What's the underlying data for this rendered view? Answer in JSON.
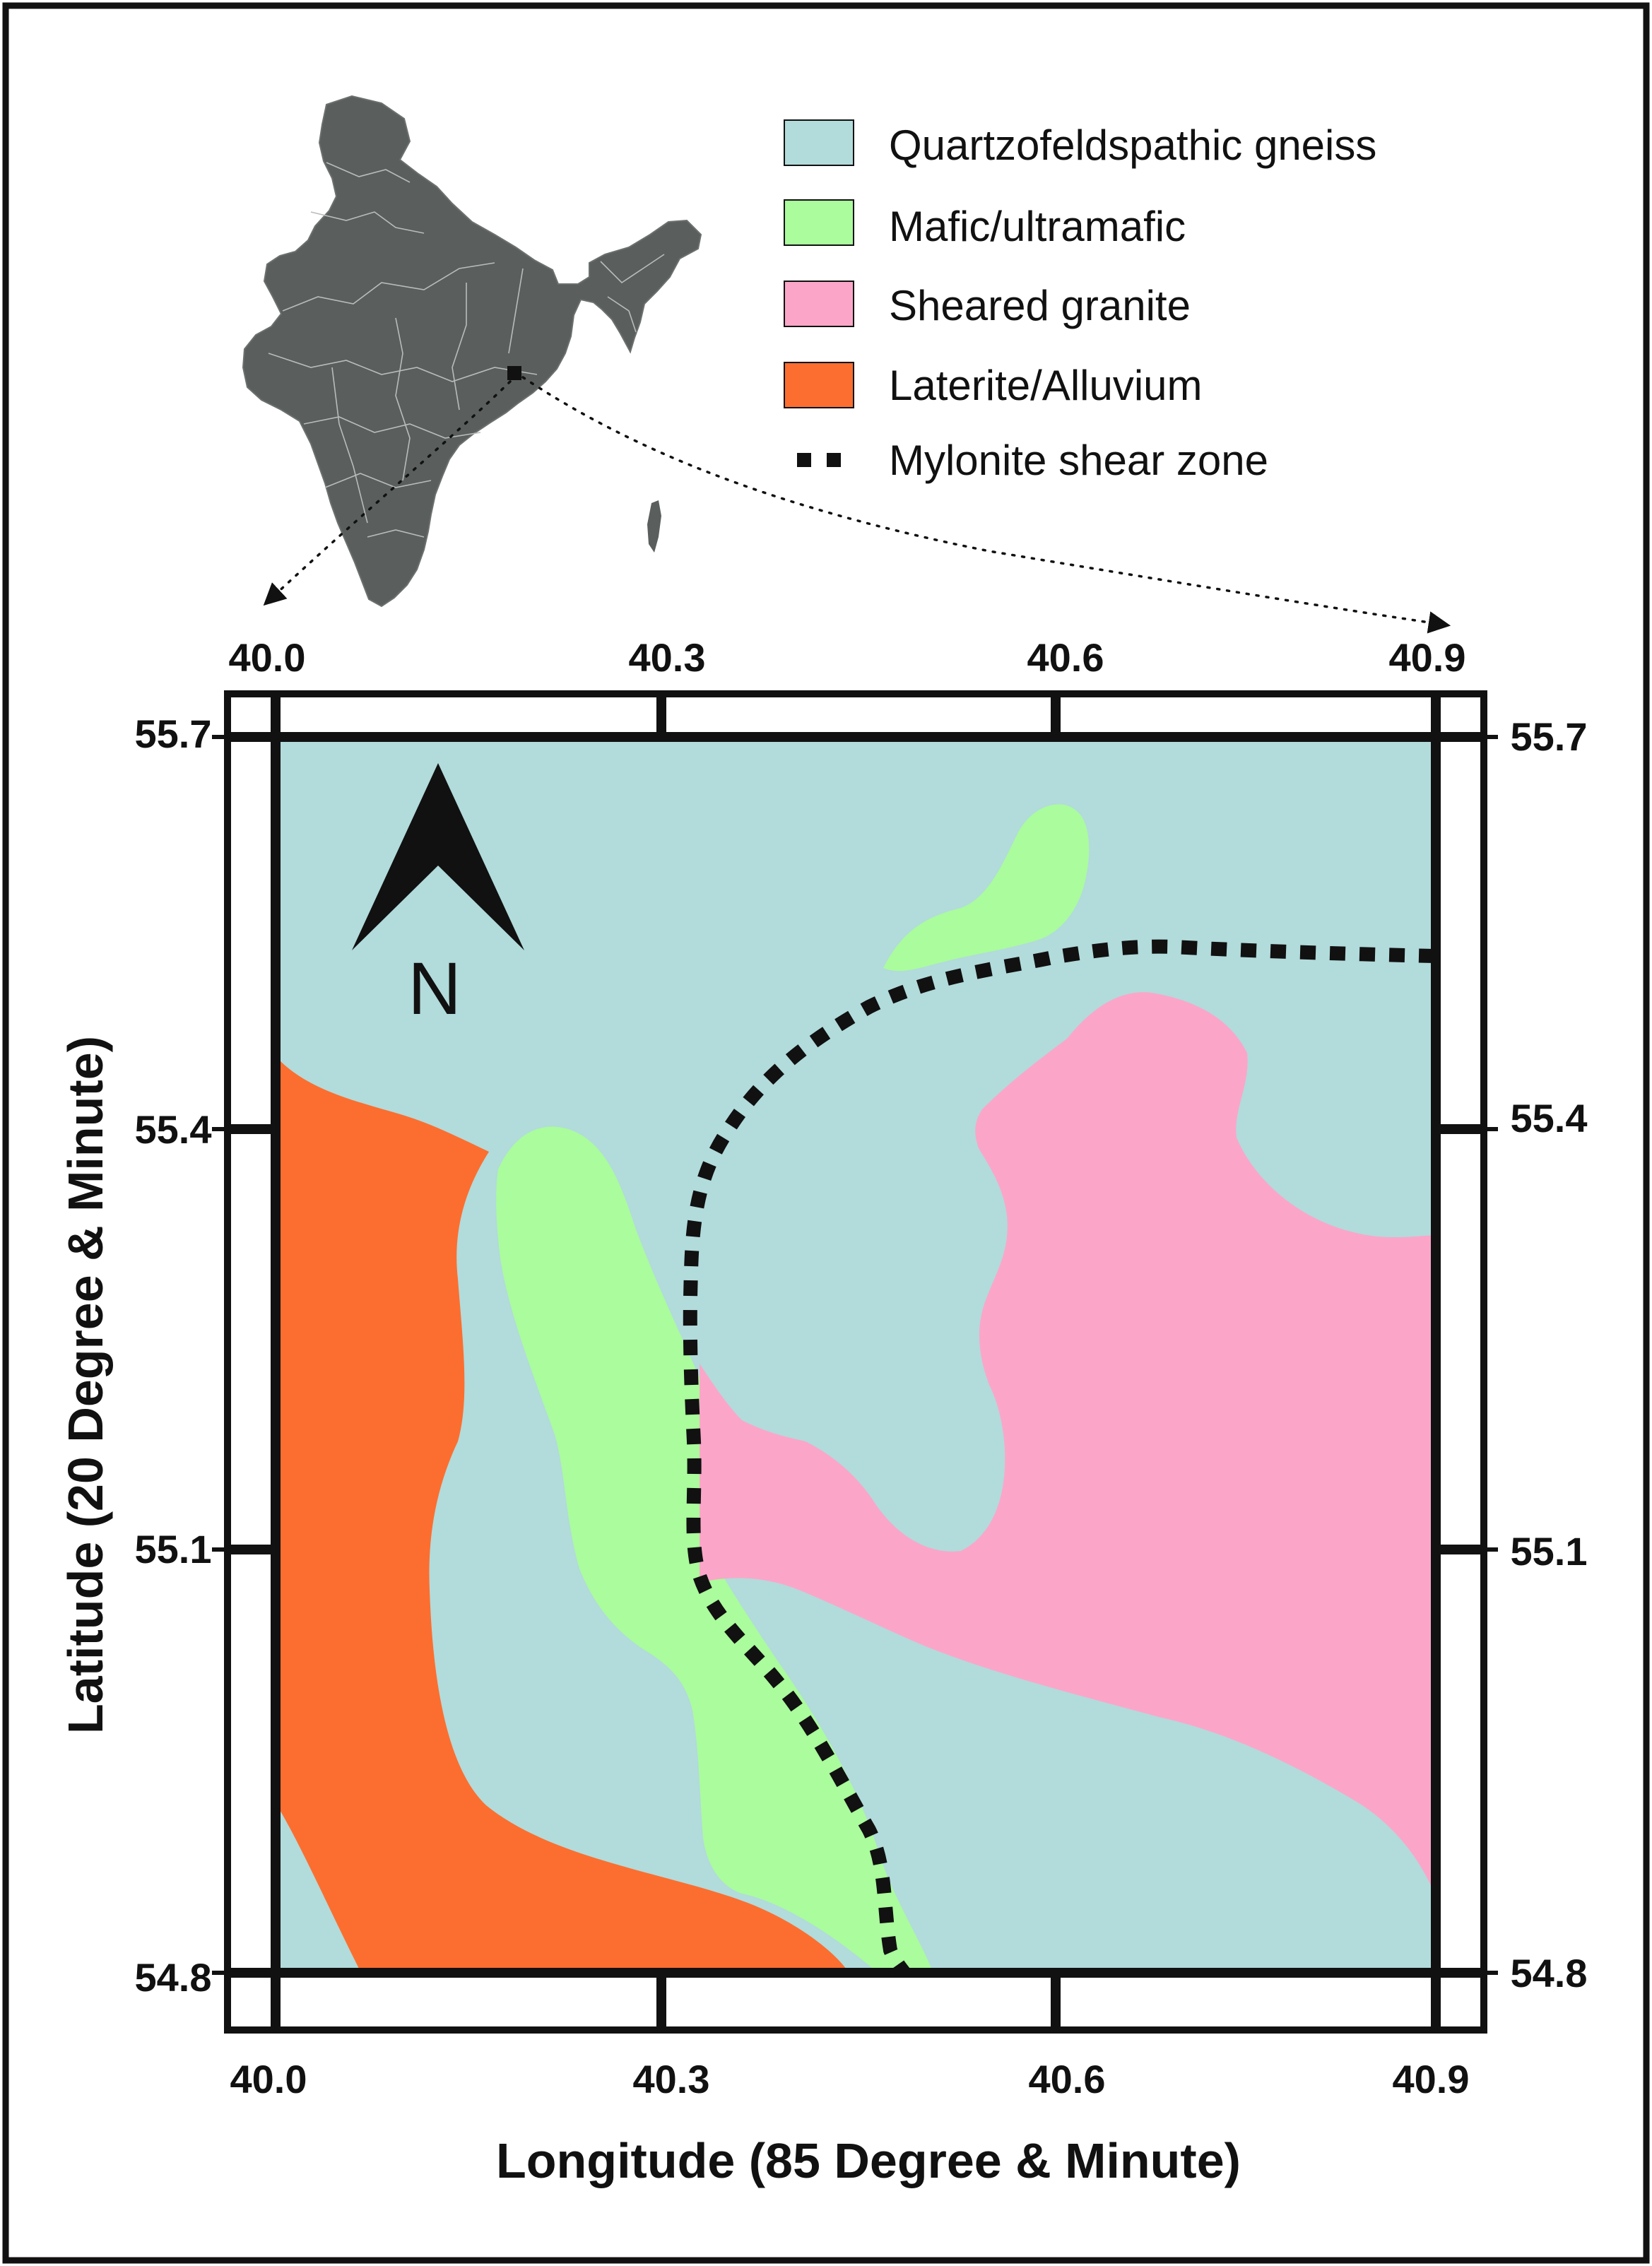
{
  "colors": {
    "quartzofeldspathic_gneiss": "#b2dbdb",
    "mafic_ultramafic": "#aafc9c",
    "sheared_granite": "#fba6c8",
    "laterite_alluvium": "#fc6e2f",
    "mylonite": "#111111",
    "india_fill": "#5a5f5e",
    "frame": "#111111"
  },
  "legend": [
    {
      "label": "Quartzofeldspathic gneiss",
      "color_key": "quartzofeldspathic_gneiss",
      "symbol": "box"
    },
    {
      "label": "Mafic/ultramafic",
      "color_key": "mafic_ultramafic",
      "symbol": "box"
    },
    {
      "label": "Sheared granite",
      "color_key": "sheared_granite",
      "symbol": "box"
    },
    {
      "label": "Laterite/Alluvium",
      "color_key": "laterite_alluvium",
      "symbol": "box"
    },
    {
      "label": "Mylonite shear zone",
      "color_key": "mylonite",
      "symbol": "dotted-line"
    }
  ],
  "north_arrow": {
    "label": "N"
  },
  "axes": {
    "x_title": "Longitude (85 Degree & Minute)",
    "y_title": "Latitude (20 Degree & Minute)",
    "x_ticks": [
      "40.0",
      "40.3",
      "40.6",
      "40.9"
    ],
    "y_ticks": [
      "55.7",
      "55.4",
      "55.1",
      "54.8"
    ],
    "x_range": [
      40.0,
      40.9
    ],
    "y_range": [
      54.8,
      55.7
    ]
  },
  "inset": {
    "subject": "India",
    "icon": "india-map-icon"
  }
}
